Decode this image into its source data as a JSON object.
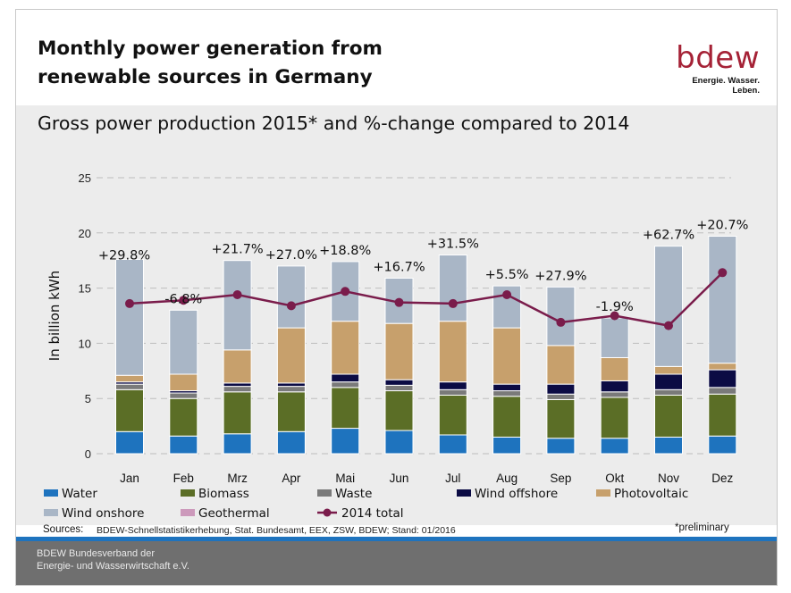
{
  "header": {
    "title_line1": "Monthly power generation from",
    "title_line2": "renewable sources in Germany",
    "logo_word": "bdew",
    "logo_tagline": "Energie. Wasser. Leben."
  },
  "subtitle": "Gross power production 2015* and %-change compared to 2014",
  "chart_data": {
    "type": "bar",
    "stacked": true,
    "ylabel": "In billion kWh",
    "ylim": [
      0,
      25
    ],
    "yticks": [
      0,
      5,
      10,
      15,
      20,
      25
    ],
    "grid": "dashed",
    "categories": [
      "Jan",
      "Feb",
      "Mrz",
      "Apr",
      "Mai",
      "Jun",
      "Jul",
      "Aug",
      "Sep",
      "Okt",
      "Nov",
      "Dez"
    ],
    "series": [
      {
        "name": "Water",
        "color": "#1e73be",
        "values": [
          2.0,
          1.6,
          1.8,
          2.0,
          2.3,
          2.1,
          1.7,
          1.5,
          1.4,
          1.4,
          1.5,
          1.6
        ]
      },
      {
        "name": "Biomass",
        "color": "#5b6e26",
        "values": [
          3.8,
          3.4,
          3.8,
          3.6,
          3.7,
          3.6,
          3.6,
          3.7,
          3.5,
          3.7,
          3.8,
          3.8
        ]
      },
      {
        "name": "Waste",
        "color": "#7a7a7a",
        "values": [
          0.5,
          0.5,
          0.5,
          0.5,
          0.5,
          0.5,
          0.5,
          0.5,
          0.5,
          0.5,
          0.5,
          0.6
        ]
      },
      {
        "name": "Wind offshore",
        "color": "#0b0b44",
        "values": [
          0.2,
          0.2,
          0.3,
          0.3,
          0.7,
          0.5,
          0.7,
          0.6,
          0.9,
          1.0,
          1.4,
          1.6
        ]
      },
      {
        "name": "Photovoltaic",
        "color": "#c7a06c",
        "values": [
          0.6,
          1.5,
          3.0,
          5.0,
          4.8,
          5.1,
          5.5,
          5.1,
          3.5,
          2.1,
          0.7,
          0.6
        ]
      },
      {
        "name": "Wind onshore",
        "color": "#a9b6c6",
        "values": [
          10.5,
          5.8,
          8.1,
          5.6,
          5.4,
          4.1,
          6.0,
          3.8,
          5.3,
          3.6,
          10.9,
          11.5
        ]
      },
      {
        "name": "Geothermal",
        "color": "#cc99bb",
        "values": [
          0.0,
          0.0,
          0.0,
          0.0,
          0.0,
          0.0,
          0.0,
          0.0,
          0.0,
          0.0,
          0.0,
          0.0
        ]
      }
    ],
    "line": {
      "name": "2014 total",
      "color": "#7a1c4b",
      "values": [
        13.6,
        13.9,
        14.4,
        13.4,
        14.7,
        13.7,
        13.6,
        14.4,
        11.9,
        12.5,
        11.6,
        16.4
      ]
    },
    "annotations": [
      "+29.8%",
      "-6.8%",
      "+21.7%",
      "+27.0%",
      "+18.8%",
      "+16.7%",
      "+31.5%",
      "+5.5%",
      "+27.9%",
      "-1.9%",
      "+62.7%",
      "+20.7%"
    ],
    "legend_position": "bottom"
  },
  "sources": {
    "label": "Sources:",
    "text": "BDEW-Schnellstatistikerhebung, Stat. Bundesamt, EEX, ZSW, BDEW; Stand: 01/2016",
    "note": "*preliminary"
  },
  "footer": {
    "line1": "BDEW Bundesverband der",
    "line2": "Energie- und Wasserwirtschaft e.V."
  }
}
